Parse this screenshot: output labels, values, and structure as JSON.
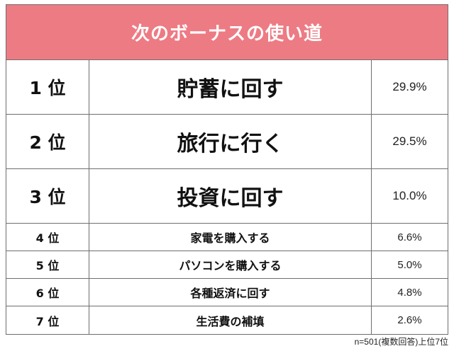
{
  "title": "次のボーナスの使い道",
  "rows": [
    {
      "rank": "1 位",
      "item": "貯蓄に回す",
      "percent": "29.9%"
    },
    {
      "rank": "2 位",
      "item": "旅行に行く",
      "percent": "29.5%"
    },
    {
      "rank": "3 位",
      "item": "投資に回す",
      "percent": "10.0%"
    },
    {
      "rank": "4 位",
      "item": "家電を購入する",
      "percent": "6.6%"
    },
    {
      "rank": "5 位",
      "item": "パソコンを購入する",
      "percent": "5.0%"
    },
    {
      "rank": "6 位",
      "item": "各種返済に回す",
      "percent": "4.8%"
    },
    {
      "rank": "7 位",
      "item": "生活費の補填",
      "percent": "2.6%"
    }
  ],
  "footnote": "n=501(複数回答)上位7位",
  "colors": {
    "header_background": "#ed7b84",
    "header_text": "#ffffff",
    "border": "#6e6e6e"
  }
}
